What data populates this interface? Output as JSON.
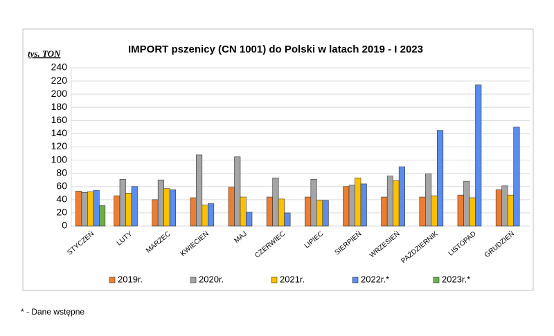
{
  "chart_data": {
    "type": "bar",
    "title": "IMPORT pszenicy (CN 1001) do Polski w latach 2019 - I 2023",
    "y_label": "tys. TON",
    "categories": [
      "STYCZEŃ",
      "LUTY",
      "MARZEC",
      "KWIECIEŃ",
      "MAJ",
      "CZERWIEC",
      "LIPIEC",
      "SIERPIEŃ",
      "WRZESIEŃ",
      "PAŹDZIERNIK",
      "LISTOPAD",
      "GRUDZIEŃ"
    ],
    "series": [
      {
        "name": "2019r.",
        "color": "#ED7D31",
        "values": [
          53,
          46,
          40,
          43,
          59,
          44,
          44,
          60,
          44,
          44,
          47,
          55
        ]
      },
      {
        "name": "2020r.",
        "color": "#A5A5A5",
        "values": [
          51,
          71,
          70,
          108,
          105,
          73,
          71,
          62,
          76,
          79,
          68,
          61
        ]
      },
      {
        "name": "2021r.",
        "color": "#FFC000",
        "values": [
          52,
          50,
          57,
          32,
          44,
          41,
          39,
          73,
          69,
          46,
          43,
          47
        ]
      },
      {
        "name": "2022r.*",
        "color": "#5B8DEF",
        "values": [
          54,
          60,
          55,
          34,
          21,
          20,
          39,
          64,
          90,
          145,
          214,
          150
        ]
      },
      {
        "name": "2023r.*",
        "color": "#70AD47",
        "values": [
          31,
          null,
          null,
          null,
          null,
          null,
          null,
          null,
          null,
          null,
          null,
          null
        ]
      }
    ],
    "ylim": [
      0,
      240
    ],
    "yticks": [
      0,
      20,
      40,
      60,
      80,
      100,
      120,
      140,
      160,
      180,
      200,
      220,
      240
    ],
    "grid": true,
    "legend": "bottom"
  },
  "footnote": "* - Dane wstępne"
}
